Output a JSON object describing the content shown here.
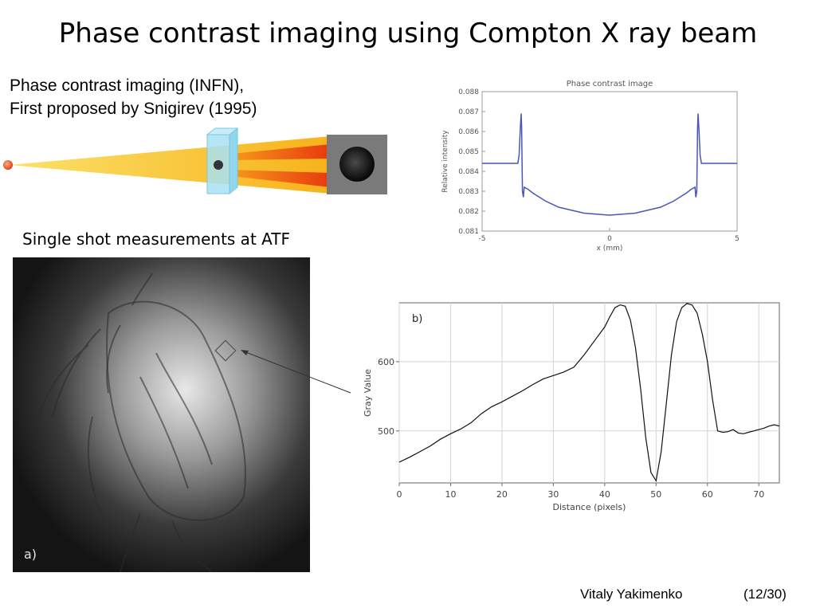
{
  "slide": {
    "title": "Phase contrast imaging using Compton X ray beam",
    "intro_line1": "Phase contrast imaging (INFN),",
    "intro_line2": "First proposed by Snigirev (1995)",
    "section_label": "Single shot measurements at ATF",
    "author": "Vitaly Yakimenko",
    "page": "(12/30)"
  },
  "photo": {
    "label": "a)"
  },
  "colors": {
    "beam_yellow": "#f7c21a",
    "beam_red": "#e8380f",
    "phase_line": "#4a55b8",
    "photo_bg": "#1a1a1a"
  },
  "chart_data": [
    {
      "type": "line",
      "title": "Phase contrast image",
      "xlabel": "x (mm)",
      "ylabel": "Relative intensity",
      "xlim": [
        -5,
        5
      ],
      "ylim": [
        0.081,
        0.088
      ],
      "x_ticks": [
        "-5",
        "0",
        "5"
      ],
      "y_ticks": [
        "0.081",
        "0.082",
        "0.083",
        "0.084",
        "0.085",
        "0.086",
        "0.087",
        "0.088"
      ],
      "grid": false,
      "x": [
        -5,
        -3.6,
        -3.55,
        -3.5,
        -3.47,
        -3.45,
        -3.42,
        -3.38,
        -3.35,
        -3.2,
        -3,
        -2.5,
        -2,
        -1,
        0,
        1,
        2,
        2.5,
        3,
        3.2,
        3.35,
        3.38,
        3.42,
        3.45,
        3.47,
        3.5,
        3.55,
        3.6,
        5
      ],
      "values": [
        0.0844,
        0.0844,
        0.0848,
        0.0862,
        0.0869,
        0.0862,
        0.083,
        0.0827,
        0.0832,
        0.0831,
        0.0829,
        0.0825,
        0.0822,
        0.0819,
        0.0818,
        0.0819,
        0.0822,
        0.0825,
        0.0829,
        0.0831,
        0.0832,
        0.0827,
        0.083,
        0.0862,
        0.0869,
        0.0862,
        0.0848,
        0.0844,
        0.0844
      ]
    },
    {
      "type": "line",
      "label": "b)",
      "xlabel": "Distance (pixels)",
      "ylabel": "Gray Value",
      "xlim": [
        0,
        74
      ],
      "ylim": [
        425,
        685
      ],
      "x_ticks": [
        "0",
        "10",
        "20",
        "30",
        "40",
        "50",
        "60",
        "70"
      ],
      "y_ticks": [
        "500",
        "600"
      ],
      "grid": true,
      "x": [
        0,
        2,
        4,
        6,
        8,
        10,
        12,
        14,
        16,
        18,
        20,
        22,
        24,
        26,
        28,
        30,
        32,
        34,
        36,
        38,
        40,
        41,
        42,
        43,
        44,
        45,
        46,
        47,
        48,
        49,
        50,
        51,
        52,
        53,
        54,
        55,
        56,
        57,
        58,
        59,
        60,
        61,
        62,
        63,
        64,
        65,
        66,
        67,
        68,
        69,
        70,
        71,
        72,
        73,
        74
      ],
      "values": [
        455,
        462,
        470,
        478,
        488,
        496,
        503,
        512,
        525,
        535,
        542,
        550,
        558,
        567,
        575,
        580,
        585,
        592,
        610,
        630,
        650,
        665,
        678,
        682,
        680,
        660,
        620,
        560,
        490,
        440,
        428,
        470,
        540,
        610,
        658,
        678,
        684,
        682,
        670,
        640,
        600,
        545,
        500,
        498,
        499,
        502,
        497,
        496,
        498,
        500,
        502,
        504,
        507,
        509,
        507
      ]
    }
  ]
}
